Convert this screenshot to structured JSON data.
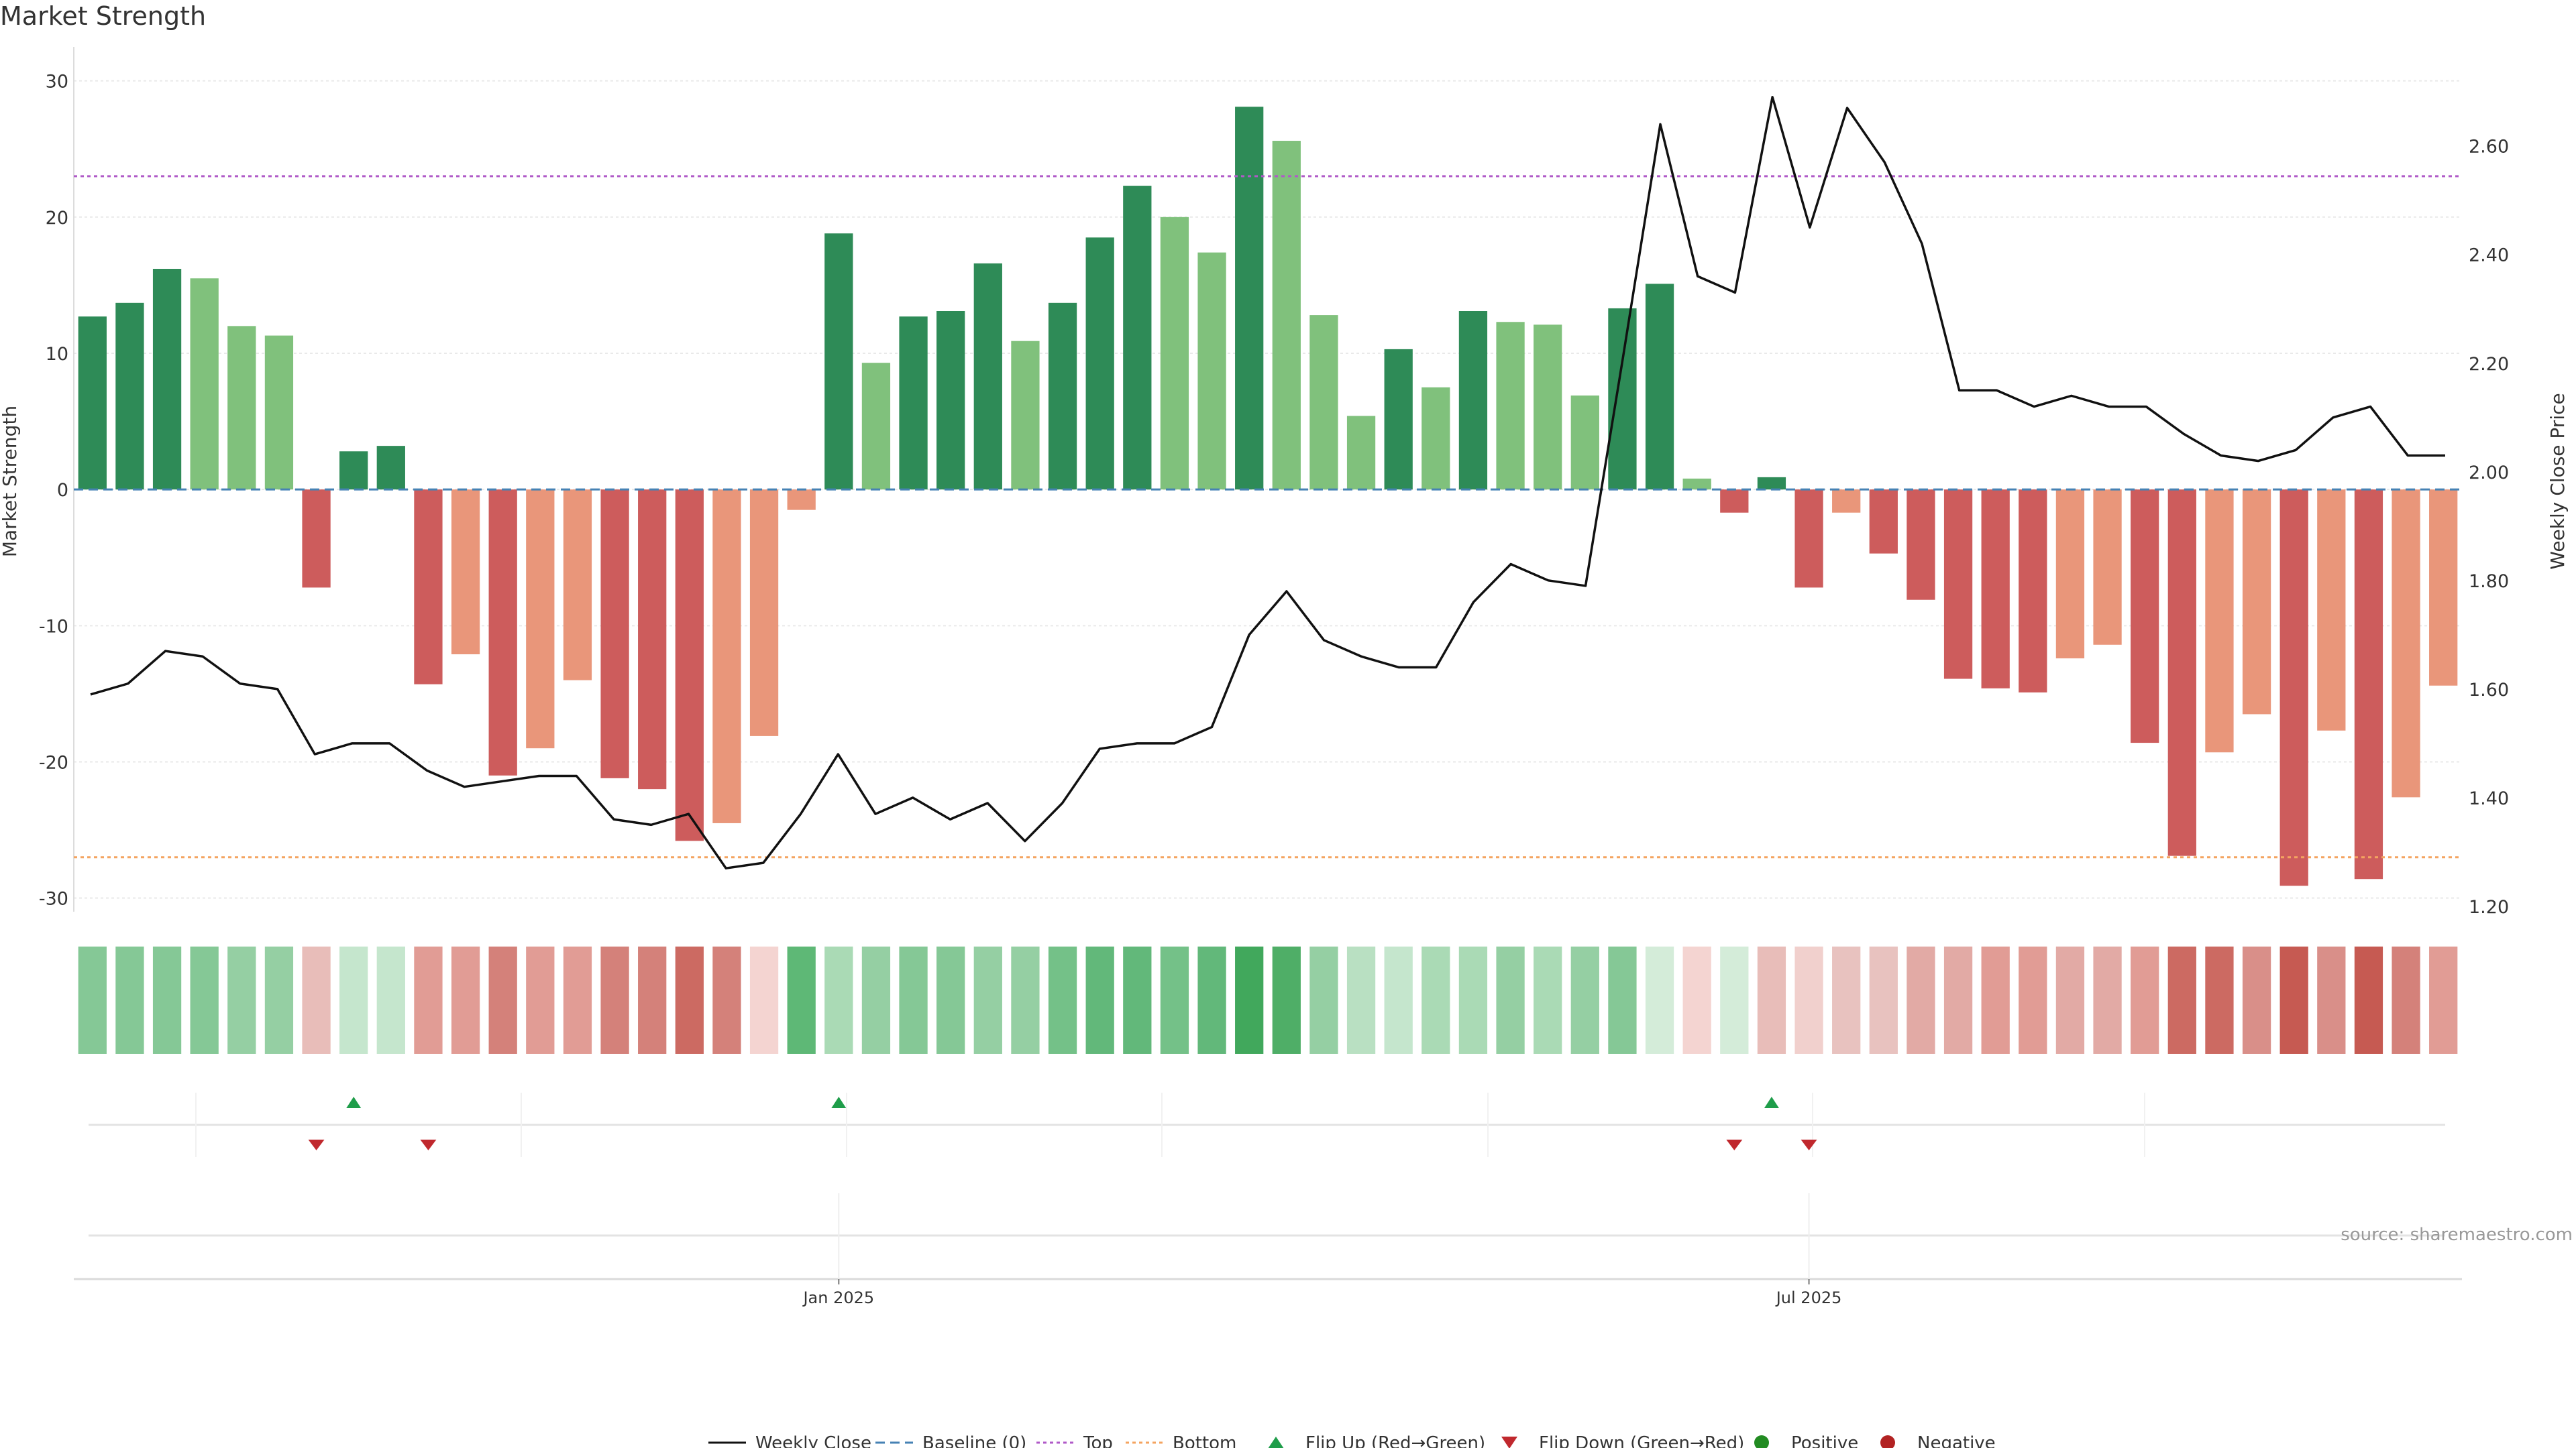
{
  "chart_data": {
    "type": "bar",
    "title": "Market Strength",
    "ylabel": "Market Strength",
    "y2label": "Weekly Close Price",
    "ylim": [
      -31,
      32
    ],
    "y2lim": [
      1.19,
      2.77
    ],
    "yticks": [
      30,
      20,
      10,
      0,
      -10,
      -20,
      -30
    ],
    "y2ticks": [
      "2.60",
      "2.40",
      "2.20",
      "2.00",
      "1.80",
      "1.60",
      "1.40",
      "1.20"
    ],
    "x_tick_labels": [
      "Jan 2025",
      "Jul 2025"
    ],
    "x_tick_positions": [
      20.5,
      46.5
    ],
    "top_level": 23,
    "bottom_level": -27,
    "source": "source: sharemaestro.com",
    "strength": [
      12.7,
      13.7,
      16.2,
      15.5,
      12,
      11.3,
      -7.2,
      2.8,
      3.2,
      -14.3,
      -12.1,
      -21,
      -19,
      -14,
      -21.2,
      -22,
      -25.8,
      -24.5,
      -18.1,
      -1.5,
      18.8,
      9.3,
      12.7,
      13.1,
      16.6,
      10.9,
      13.7,
      18.5,
      22.3,
      20,
      17.4,
      28.1,
      25.6,
      12.8,
      5.4,
      10.3,
      7.5,
      13.1,
      12.3,
      12.1,
      6.9,
      13.3,
      15.1,
      0.8,
      -1.7,
      0.9,
      -7.2,
      -1.7,
      -4.7,
      -8.1,
      -13.9,
      -14.6,
      -14.9,
      -12.4,
      -11.4,
      -18.6,
      -26.9,
      -19.3,
      -16.5,
      -29.1,
      -17.7,
      -28.6,
      -22.6,
      -14.4
    ],
    "shade": [
      "d",
      "d",
      "d",
      "l",
      "l",
      "l",
      "d",
      "d",
      "d",
      "d",
      "l",
      "d",
      "l",
      "l",
      "d",
      "d",
      "d",
      "l",
      "l",
      "l",
      "d",
      "l",
      "d",
      "d",
      "d",
      "l",
      "d",
      "d",
      "d",
      "l",
      "l",
      "d",
      "l",
      "l",
      "l",
      "d",
      "l",
      "d",
      "l",
      "l",
      "l",
      "d",
      "d",
      "l",
      "d",
      "d",
      "d",
      "l",
      "d",
      "d",
      "d",
      "d",
      "d",
      "l",
      "l",
      "d",
      "d",
      "l",
      "l",
      "d",
      "l",
      "d",
      "l",
      "l"
    ],
    "weekly_close": [
      1.59,
      1.61,
      1.67,
      1.66,
      1.61,
      1.6,
      1.48,
      1.5,
      1.5,
      1.45,
      1.42,
      1.43,
      1.44,
      1.44,
      1.36,
      1.35,
      1.37,
      1.27,
      1.28,
      1.37,
      1.48,
      1.37,
      1.4,
      1.36,
      1.39,
      1.32,
      1.39,
      1.49,
      1.5,
      1.5,
      1.53,
      1.7,
      1.78,
      1.69,
      1.66,
      1.64,
      1.64,
      1.76,
      1.83,
      1.8,
      1.79,
      2.21,
      2.64,
      2.36,
      2.33,
      2.69,
      2.45,
      2.67,
      2.57,
      2.42,
      2.15,
      2.15,
      2.12,
      2.14,
      2.12,
      2.12,
      2.07,
      2.03,
      2.02,
      2.04,
      2.1,
      2.12,
      2.03,
      2.03
    ],
    "heat_colors": [
      "#85c896",
      "#85c896",
      "#85c896",
      "#85c896",
      "#95cfa3",
      "#95cfa3",
      "#e8bdb9",
      "#c5e6cd",
      "#c5e6cd",
      "#e19c95",
      "#e19c95",
      "#d4817a",
      "#e19c95",
      "#e19c95",
      "#d4817a",
      "#d4817a",
      "#cc6a62",
      "#d4817a",
      "#f4d4d1",
      "#5eb876",
      "#aadab5",
      "#95cfa3",
      "#85c896",
      "#85c896",
      "#95cfa3",
      "#95cfa3",
      "#74c188",
      "#62b87a",
      "#62b87a",
      "#74c188",
      "#62b87a",
      "#41a85c",
      "#4fae67",
      "#95cfa3",
      "#b9e0c2",
      "#c5e6cd",
      "#aadab5",
      "#aadab5",
      "#95cfa3",
      "#aadab5",
      "#95cfa3",
      "#85c896",
      "#d4ecd9",
      "#f4d4d1",
      "#d4ecd9",
      "#e8bdb9",
      "#f1d0cd",
      "#e8c2bf",
      "#e8c2bf",
      "#e2aaa5",
      "#e2aaa5",
      "#e19c95",
      "#e19c95",
      "#e2aaa5",
      "#e2aaa5",
      "#e19c95",
      "#cc6a62",
      "#cc6a62",
      "#d98f89",
      "#c65a52",
      "#d98f89",
      "#c65a52",
      "#d4817a",
      "#e19c95"
    ],
    "flip_up_weeks": [
      7,
      20,
      45
    ],
    "flip_down_weeks": [
      6,
      9,
      44,
      46
    ],
    "legend": [
      "Weekly Close",
      "Baseline (0)",
      "Top",
      "Bottom",
      "Flip Up (Red→Green)",
      "Flip Down (Green→Red)",
      "Positive",
      "Negative"
    ],
    "colors": {
      "pos_dark": "#2e8b57",
      "pos_light": "#80c17c",
      "neg_dark": "#cd5c5c",
      "neg_light": "#e9967a",
      "line": "#111111",
      "baseline": "#4682b4",
      "top": "#b05ac8",
      "bottom": "#f4a460",
      "flip_up": "#1f9d4a",
      "flip_down": "#c0282d",
      "positive_dot": "#228b22",
      "negative_dot": "#b22222"
    }
  }
}
